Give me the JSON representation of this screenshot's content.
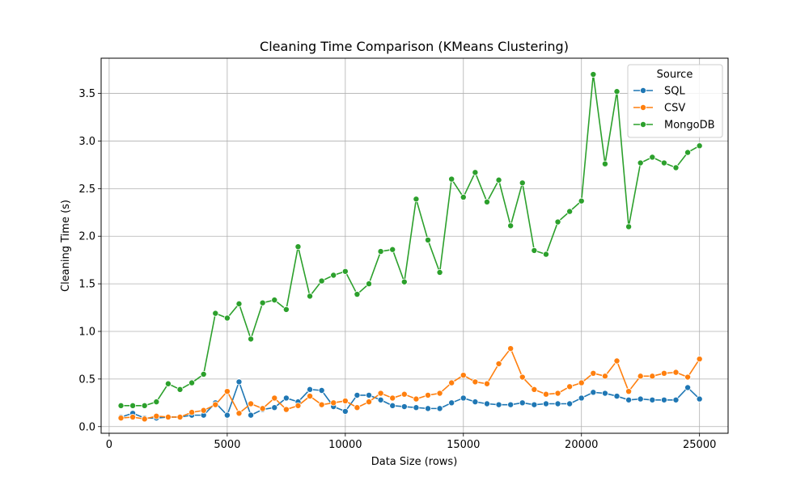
{
  "chart_data": {
    "type": "line",
    "title": "Cleaning Time Comparison (KMeans Clustering)",
    "xlabel": "Data Size (rows)",
    "ylabel": "Cleaning Time (s)",
    "xlim": [
      -340,
      26210
    ],
    "ylim": [
      -0.07,
      3.87
    ],
    "xticks": [
      0,
      5000,
      10000,
      15000,
      20000,
      25000
    ],
    "yticks": [
      0.0,
      0.5,
      1.0,
      1.5,
      2.0,
      2.5,
      3.0,
      3.5
    ],
    "xtick_labels": [
      "0",
      "5000",
      "10000",
      "15000",
      "20000",
      "25000"
    ],
    "ytick_labels": [
      "0.0",
      "0.5",
      "1.0",
      "1.5",
      "2.0",
      "2.5",
      "3.0",
      "3.5"
    ],
    "grid": true,
    "legend": {
      "title": "Source",
      "position": "top-right"
    },
    "x": [
      500,
      1000,
      1500,
      2000,
      2500,
      3000,
      3500,
      4000,
      4500,
      5000,
      5500,
      6000,
      6500,
      7000,
      7500,
      8000,
      8500,
      9000,
      9500,
      10000,
      10500,
      11000,
      11500,
      12000,
      12500,
      13000,
      13500,
      14000,
      14500,
      15000,
      15500,
      16000,
      16500,
      17000,
      17500,
      18000,
      18500,
      19000,
      19500,
      20000,
      20500,
      21000,
      21500,
      22000,
      22500,
      23000,
      23500,
      24000,
      24500,
      25000
    ],
    "series": [
      {
        "name": "SQL",
        "color": "#1f77b4",
        "values": [
          0.1,
          0.14,
          0.09,
          0.09,
          0.1,
          0.1,
          0.12,
          0.12,
          0.25,
          0.12,
          0.47,
          0.12,
          0.18,
          0.2,
          0.3,
          0.26,
          0.39,
          0.38,
          0.21,
          0.16,
          0.33,
          0.33,
          0.28,
          0.22,
          0.21,
          0.2,
          0.19,
          0.19,
          0.25,
          0.3,
          0.26,
          0.24,
          0.23,
          0.23,
          0.25,
          0.23,
          0.24,
          0.24,
          0.24,
          0.3,
          0.36,
          0.35,
          0.32,
          0.28,
          0.29,
          0.28,
          0.28,
          0.28,
          0.41,
          0.29
        ]
      },
      {
        "name": "CSV",
        "color": "#ff7f0e",
        "values": [
          0.09,
          0.1,
          0.08,
          0.11,
          0.1,
          0.1,
          0.15,
          0.17,
          0.23,
          0.37,
          0.14,
          0.24,
          0.19,
          0.3,
          0.18,
          0.22,
          0.32,
          0.23,
          0.25,
          0.27,
          0.2,
          0.26,
          0.35,
          0.3,
          0.34,
          0.29,
          0.33,
          0.35,
          0.46,
          0.54,
          0.47,
          0.45,
          0.66,
          0.82,
          0.52,
          0.39,
          0.34,
          0.35,
          0.42,
          0.46,
          0.56,
          0.53,
          0.69,
          0.37,
          0.53,
          0.53,
          0.56,
          0.57,
          0.52,
          0.71
        ]
      },
      {
        "name": "MongoDB",
        "color": "#2ca02c",
        "values": [
          0.22,
          0.22,
          0.22,
          0.26,
          0.45,
          0.39,
          0.46,
          0.55,
          1.19,
          1.14,
          1.29,
          0.92,
          1.3,
          1.33,
          1.23,
          1.89,
          1.37,
          1.53,
          1.59,
          1.63,
          1.39,
          1.5,
          1.84,
          1.86,
          1.52,
          2.39,
          1.96,
          1.62,
          2.6,
          2.41,
          2.67,
          2.36,
          2.59,
          2.11,
          2.56,
          1.85,
          1.81,
          2.15,
          2.26,
          2.37,
          3.7,
          2.76,
          3.52,
          2.1,
          2.77,
          2.83,
          2.77,
          2.72,
          2.88,
          2.95
        ]
      }
    ]
  }
}
